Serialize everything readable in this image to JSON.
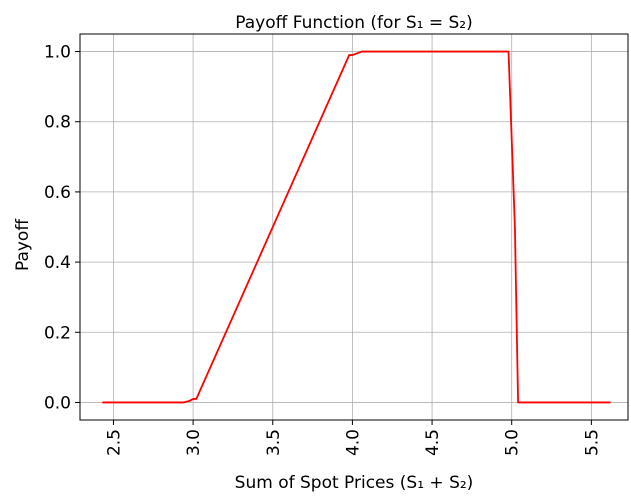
{
  "chart_data": {
    "type": "line",
    "title": "Payoff Function (for S₁ = S₂)",
    "xlabel": "Sum of Spot Prices (S₁ + S₂)",
    "ylabel": "Payoff",
    "xlim": [
      2.29,
      5.73
    ],
    "ylim": [
      -0.05,
      1.05
    ],
    "xticks": [
      2.5,
      3.0,
      3.5,
      4.0,
      4.5,
      5.0,
      5.5
    ],
    "xtick_labels": [
      "2.5",
      "3.0",
      "3.5",
      "4.0",
      "4.5",
      "5.0",
      "5.5"
    ],
    "yticks": [
      0.0,
      0.2,
      0.4,
      0.6,
      0.8,
      1.0
    ],
    "ytick_labels": [
      "0.0",
      "0.2",
      "0.4",
      "0.6",
      "0.8",
      "1.0"
    ],
    "grid": true,
    "series": [
      {
        "color": "#ff0000",
        "x": [
          2.43,
          2.94,
          2.98,
          3.0,
          3.02,
          3.98,
          4.0,
          4.06,
          4.96,
          4.98,
          5.02,
          5.04,
          5.62
        ],
        "y": [
          0.0,
          0.0,
          0.005,
          0.01,
          0.01,
          0.99,
          0.99,
          1.0,
          1.0,
          1.0,
          0.5,
          0.0,
          0.0
        ]
      }
    ]
  }
}
